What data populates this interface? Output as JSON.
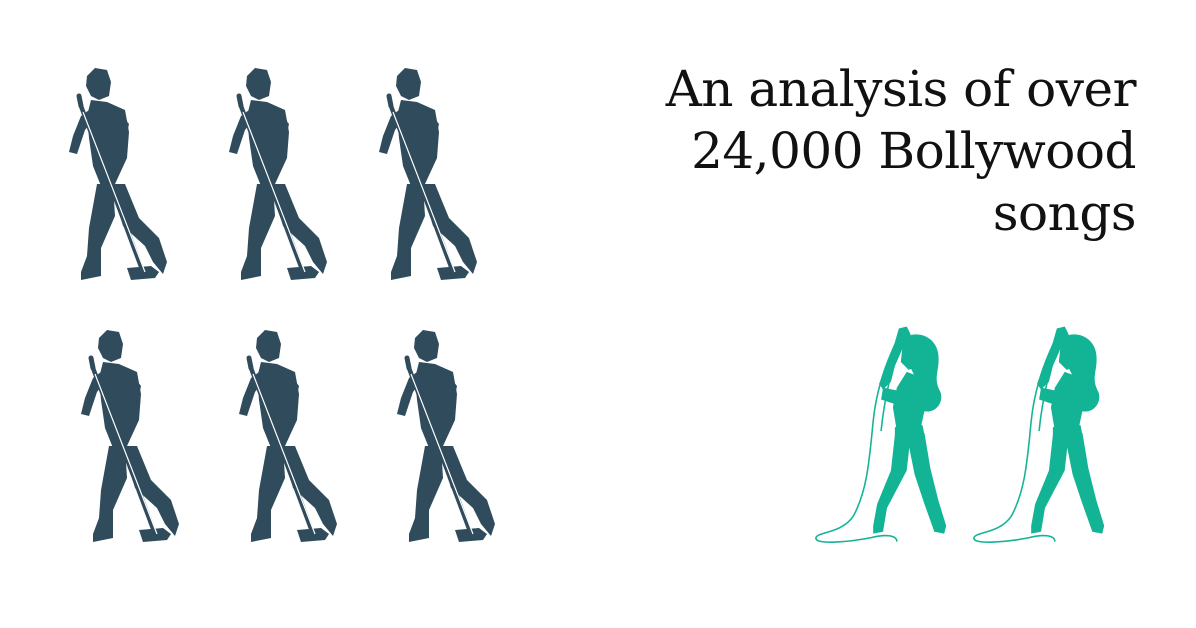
{
  "headline": {
    "line1": "An analysis of over",
    "line2": "24,000 Bollywood",
    "line3": "songs"
  },
  "colors": {
    "male_singer": "#2F4B5C",
    "female_singer": "#13B496",
    "text": "#111111",
    "background": "#ffffff"
  },
  "icons": {
    "male": "male-singer-icon",
    "female": "female-singer-icon"
  },
  "counts": {
    "male_singers": 6,
    "female_singers": 2
  }
}
